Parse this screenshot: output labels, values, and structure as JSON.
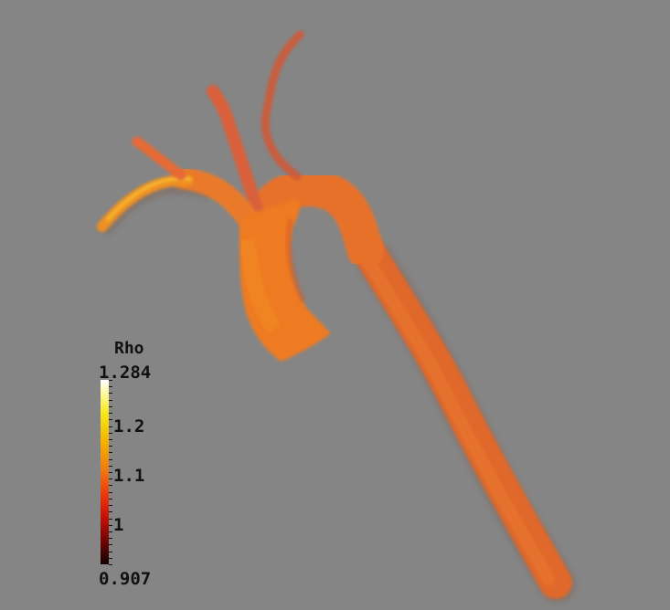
{
  "colorbar": {
    "title": "Rho",
    "max_label": "1.284",
    "min_label": "0.907",
    "tick_labels": [
      "1.2",
      "1.1",
      "1"
    ],
    "range": [
      0.907,
      1.284
    ],
    "colors": [
      "#ffffff",
      "#f7e91c",
      "#ef7d12",
      "#e9360e",
      "#c11007",
      "#120000"
    ]
  },
  "scene": {
    "background": "#858585",
    "vessel_color": "#e96a24"
  }
}
